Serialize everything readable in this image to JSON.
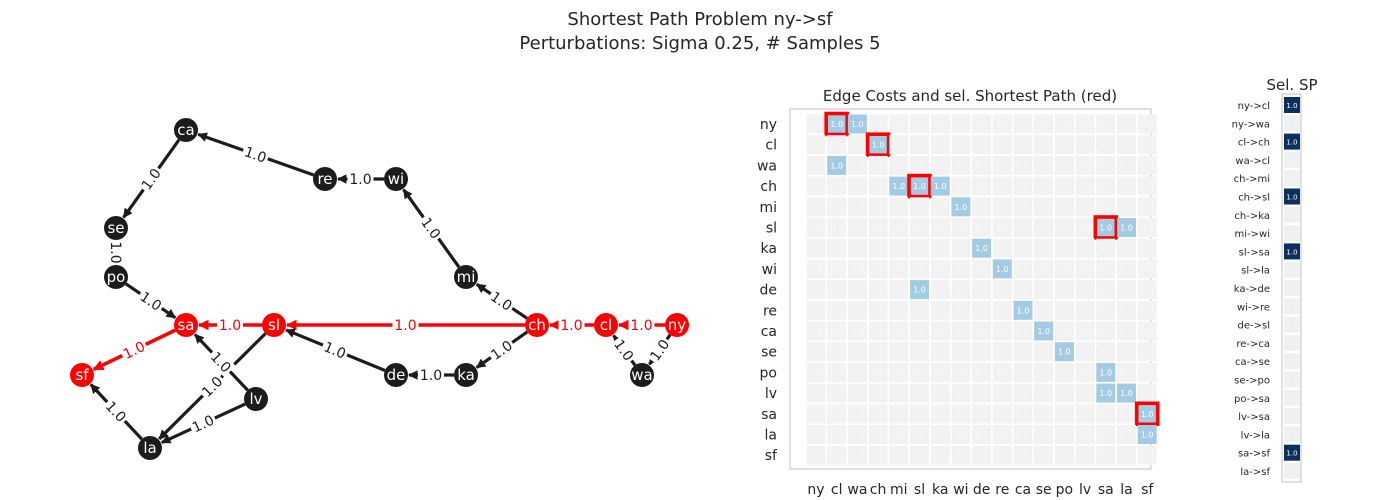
{
  "title": {
    "line1": "Shortest Path Problem ny->sf",
    "line2": "Perturbations: Sigma 0.25, # Samples 5"
  },
  "colors": {
    "node": "#1c1c1c",
    "path": "#ff0000",
    "cell_bg": "#f2f2f2",
    "cell_edge": "#a3cbe3",
    "sel_dark": "#0b2f5e",
    "sel_bg": "#eef0f2",
    "text": "#262626"
  },
  "chart_data": [
    {
      "type": "graph",
      "nodes": [
        "ny",
        "cl",
        "wa",
        "ch",
        "mi",
        "sl",
        "ka",
        "wi",
        "de",
        "re",
        "ca",
        "se",
        "po",
        "lv",
        "sa",
        "la",
        "sf"
      ],
      "edges": [
        {
          "from": "ny",
          "to": "cl",
          "weight": 1.0,
          "on_path": true
        },
        {
          "from": "ny",
          "to": "wa",
          "weight": 1.0,
          "on_path": false
        },
        {
          "from": "cl",
          "to": "ch",
          "weight": 1.0,
          "on_path": true
        },
        {
          "from": "wa",
          "to": "cl",
          "weight": 1.0,
          "on_path": false
        },
        {
          "from": "ch",
          "to": "mi",
          "weight": 1.0,
          "on_path": false
        },
        {
          "from": "ch",
          "to": "sl",
          "weight": 1.0,
          "on_path": true
        },
        {
          "from": "ch",
          "to": "ka",
          "weight": 1.0,
          "on_path": false
        },
        {
          "from": "mi",
          "to": "wi",
          "weight": 1.0,
          "on_path": false
        },
        {
          "from": "sl",
          "to": "sa",
          "weight": 1.0,
          "on_path": true
        },
        {
          "from": "sl",
          "to": "la",
          "weight": 1.0,
          "on_path": false
        },
        {
          "from": "ka",
          "to": "de",
          "weight": 1.0,
          "on_path": false
        },
        {
          "from": "wi",
          "to": "re",
          "weight": 1.0,
          "on_path": false
        },
        {
          "from": "de",
          "to": "sl",
          "weight": 1.0,
          "on_path": false
        },
        {
          "from": "re",
          "to": "ca",
          "weight": 1.0,
          "on_path": false
        },
        {
          "from": "ca",
          "to": "se",
          "weight": 1.0,
          "on_path": false
        },
        {
          "from": "se",
          "to": "po",
          "weight": 1.0,
          "on_path": false
        },
        {
          "from": "po",
          "to": "sa",
          "weight": 1.0,
          "on_path": false
        },
        {
          "from": "lv",
          "to": "sa",
          "weight": 1.0,
          "on_path": false
        },
        {
          "from": "lv",
          "to": "la",
          "weight": 1.0,
          "on_path": false
        },
        {
          "from": "sa",
          "to": "sf",
          "weight": 1.0,
          "on_path": true
        },
        {
          "from": "la",
          "to": "sf",
          "weight": 1.0,
          "on_path": false
        }
      ],
      "path_nodes": [
        "ny",
        "cl",
        "ch",
        "sl",
        "sa",
        "sf"
      ]
    },
    {
      "type": "heatmap",
      "title": "Edge Costs and sel. Shortest Path (red)",
      "rows": [
        "ny",
        "cl",
        "wa",
        "ch",
        "mi",
        "sl",
        "ka",
        "wi",
        "de",
        "re",
        "ca",
        "se",
        "po",
        "lv",
        "sa",
        "la",
        "sf"
      ],
      "cols": [
        "ny",
        "cl",
        "wa",
        "ch",
        "mi",
        "sl",
        "ka",
        "wi",
        "de",
        "re",
        "ca",
        "se",
        "po",
        "lv",
        "sa",
        "la",
        "sf"
      ],
      "default_value": 0.0,
      "cells": [
        {
          "row": "ny",
          "col": "cl",
          "value": 1.0,
          "selected": true
        },
        {
          "row": "ny",
          "col": "wa",
          "value": 1.0,
          "selected": false
        },
        {
          "row": "cl",
          "col": "ch",
          "value": 1.0,
          "selected": true
        },
        {
          "row": "wa",
          "col": "cl",
          "value": 1.0,
          "selected": false
        },
        {
          "row": "ch",
          "col": "mi",
          "value": 1.0,
          "selected": false
        },
        {
          "row": "ch",
          "col": "sl",
          "value": 1.0,
          "selected": true
        },
        {
          "row": "ch",
          "col": "ka",
          "value": 1.0,
          "selected": false
        },
        {
          "row": "mi",
          "col": "wi",
          "value": 1.0,
          "selected": false
        },
        {
          "row": "sl",
          "col": "sa",
          "value": 1.0,
          "selected": true
        },
        {
          "row": "sl",
          "col": "la",
          "value": 1.0,
          "selected": false
        },
        {
          "row": "ka",
          "col": "de",
          "value": 1.0,
          "selected": false
        },
        {
          "row": "wi",
          "col": "re",
          "value": 1.0,
          "selected": false
        },
        {
          "row": "de",
          "col": "sl",
          "value": 1.0,
          "selected": false
        },
        {
          "row": "re",
          "col": "ca",
          "value": 1.0,
          "selected": false
        },
        {
          "row": "ca",
          "col": "se",
          "value": 1.0,
          "selected": false
        },
        {
          "row": "se",
          "col": "po",
          "value": 1.0,
          "selected": false
        },
        {
          "row": "po",
          "col": "sa",
          "value": 1.0,
          "selected": false
        },
        {
          "row": "lv",
          "col": "sa",
          "value": 1.0,
          "selected": false
        },
        {
          "row": "lv",
          "col": "la",
          "value": 1.0,
          "selected": false
        },
        {
          "row": "sa",
          "col": "sf",
          "value": 1.0,
          "selected": true
        },
        {
          "row": "la",
          "col": "sf",
          "value": 1.0,
          "selected": false
        }
      ]
    },
    {
      "type": "heatmap",
      "title": "Sel. SP",
      "rows": [
        "ny->cl",
        "ny->wa",
        "cl->ch",
        "wa->cl",
        "ch->mi",
        "ch->sl",
        "ch->ka",
        "mi->wi",
        "sl->sa",
        "sl->la",
        "ka->de",
        "wi->re",
        "de->sl",
        "re->ca",
        "ca->se",
        "se->po",
        "po->sa",
        "lv->sa",
        "lv->la",
        "sa->sf",
        "la->sf"
      ],
      "values": [
        1.0,
        0.0,
        1.0,
        0.0,
        0.0,
        1.0,
        0.0,
        0.0,
        1.0,
        0.0,
        0.0,
        0.0,
        0.0,
        0.0,
        0.0,
        0.0,
        0.0,
        0.0,
        0.0,
        1.0,
        0.0
      ]
    }
  ]
}
